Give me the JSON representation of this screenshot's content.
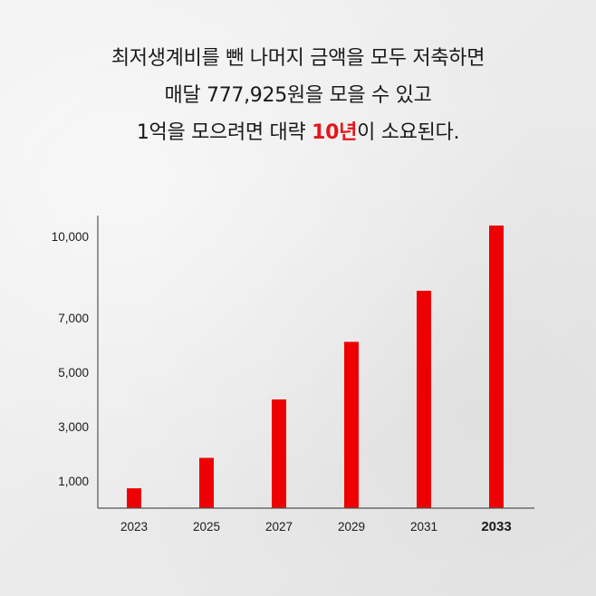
{
  "headline": {
    "line1": "최저생계비를 뺀 나머지 금액을 모두 저축하면",
    "line2": "매달 777,925원을 모을 수 있고",
    "line3_before": "1억을 모으려면 대략 ",
    "line3_highlight": "10년",
    "line3_after": "이 소요된다."
  },
  "colors": {
    "bar": "#ee0000",
    "highlight_text": "#e4161b",
    "axis": "#555555"
  },
  "chart_data": {
    "type": "bar",
    "title": "",
    "xlabel": "",
    "ylabel": "",
    "categories": [
      "2023",
      "2025",
      "2027",
      "2029",
      "2031",
      "2033"
    ],
    "values": [
      730,
      1850,
      4000,
      6120,
      8000,
      10400
    ],
    "highlight_category": "2033",
    "y_ticks": [
      1000,
      3000,
      5000,
      7000,
      10000
    ],
    "y_tick_labels": [
      "1,000",
      "3,000",
      "5,000",
      "7,000",
      "10,000"
    ],
    "ylim": [
      0,
      10600
    ],
    "grid": false,
    "legend": "none"
  }
}
